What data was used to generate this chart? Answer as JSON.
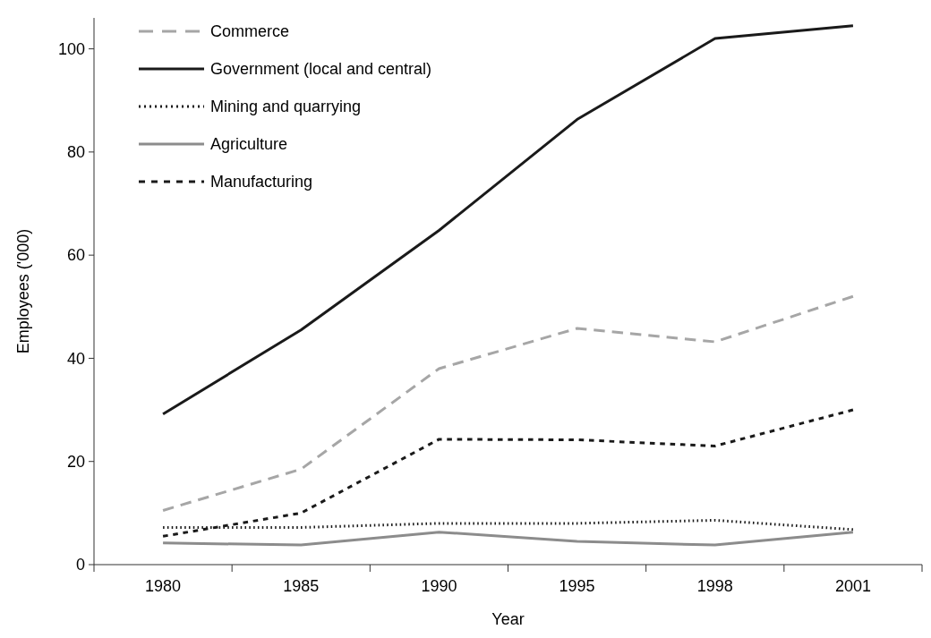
{
  "chart_data": {
    "type": "line",
    "xlabel": "Year",
    "ylabel": "Employees ('000)",
    "categories": [
      "1980",
      "1985",
      "1990",
      "1995",
      "1998",
      "2001"
    ],
    "ylim": [
      0,
      106
    ],
    "yticks": [
      0,
      20,
      40,
      60,
      80,
      100
    ],
    "grid": false,
    "legend": "top left",
    "marker": "none",
    "series": [
      {
        "name": "Commerce",
        "color": "#a6a6a6",
        "line_style": "dashed",
        "values": [
          10.5,
          18.5,
          38,
          45.8,
          43.2,
          52
        ]
      },
      {
        "name": "Government (local and central)",
        "color": "#1a1a1a",
        "line_style": "solid",
        "values": [
          29.2,
          45.5,
          64.8,
          86.3,
          102,
          104.5
        ]
      },
      {
        "name": "Mining  and quarrying",
        "color": "#1a1a1a",
        "line_style": "dotted",
        "values": [
          7.2,
          7.2,
          8,
          8,
          8.6,
          6.8
        ]
      },
      {
        "name": "Agriculture",
        "color": "#8c8c8c",
        "line_style": "solid",
        "values": [
          4.2,
          3.8,
          6.3,
          4.5,
          3.8,
          6.3
        ]
      },
      {
        "name": "Manufacturing",
        "color": "#1a1a1a",
        "line_style": "dashed",
        "values": [
          5.5,
          10,
          24.3,
          24.2,
          23,
          30
        ]
      }
    ]
  }
}
